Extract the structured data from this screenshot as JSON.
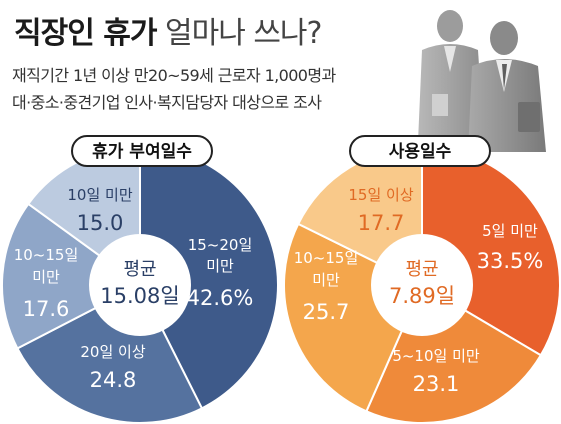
{
  "header": {
    "title_bold": "직장인 휴가",
    "title_light": "얼마나 쓰나?",
    "subtitle_line1": "재직기간 1년 이상 만20~59세 근로자 1,000명과",
    "subtitle_line2": "대·중소·중견기업 인사·복지담당자 대상으로 조사"
  },
  "colors": {
    "left_palette": [
      "#3e5a8a",
      "#55729f",
      "#8fa6c8",
      "#bccbe0"
    ],
    "right_palette": [
      "#e8602c",
      "#ef8a3a",
      "#f4a64c",
      "#f9c98a"
    ],
    "label_dark": "#ffffff",
    "label_light": "#2a3f66",
    "label_right_light": "#e06a24"
  },
  "chart_data": [
    {
      "type": "pie",
      "title": "휴가 부여일수",
      "center_label": "평균",
      "center_value": "15.08일",
      "unit": "%",
      "slices": [
        {
          "label": "15~20일 미만",
          "value": 42.6,
          "display": "42.6%"
        },
        {
          "label": "20일 이상",
          "value": 24.8,
          "display": "24.8"
        },
        {
          "label": "10~15일 미만",
          "value": 17.6,
          "display": "17.6"
        },
        {
          "label": "10일 미만",
          "value": 15.0,
          "display": "15.0"
        }
      ]
    },
    {
      "type": "pie",
      "title": "사용일수",
      "center_label": "평균",
      "center_value": "7.89일",
      "unit": "%",
      "slices": [
        {
          "label": "5일 미만",
          "value": 33.5,
          "display": "33.5%"
        },
        {
          "label": "5~10일 미만",
          "value": 23.1,
          "display": "23.1"
        },
        {
          "label": "10~15일 미만",
          "value": 25.7,
          "display": "25.7"
        },
        {
          "label": "15일 이상",
          "value": 17.7,
          "display": "17.7"
        }
      ]
    }
  ]
}
